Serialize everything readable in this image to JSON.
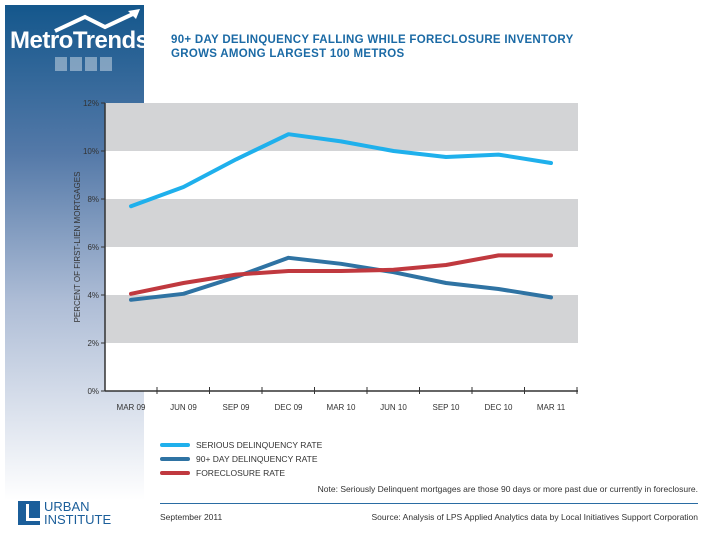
{
  "logo": "MetroTrends",
  "title_lines": [
    "90+ DAY DELINQUENCY FALLING WHILE FORECLOSURE INVENTORY",
    "GROWS AMONG LARGEST 100 METROS"
  ],
  "chart_data": {
    "type": "line",
    "title": "90+ DAY DELINQUENCY FALLING WHILE FORECLOSURE INVENTORY GROWS AMONG LARGEST 100 METROS",
    "xlabel": "",
    "ylabel": "PERCENT OF FIRST-LIEN MORTGAGES",
    "ylim": [
      0,
      12
    ],
    "yticks": [
      "0%",
      "2%",
      "4%",
      "6%",
      "8%",
      "10%",
      "12%"
    ],
    "categories": [
      "MAR 09",
      "JUN 09",
      "SEP 09",
      "DEC 09",
      "MAR 10",
      "JUN 10",
      "SEP 10",
      "DEC 10",
      "MAR 11"
    ],
    "series": [
      {
        "name": "SERIOUS DELINQUENCY RATE",
        "color": "#1fb0ec",
        "values": [
          7.7,
          8.5,
          9.65,
          10.7,
          10.4,
          10.0,
          9.75,
          9.85,
          9.5
        ]
      },
      {
        "name": "90+ DAY DELINQUENCY RATE",
        "color": "#2f73a3",
        "values": [
          3.8,
          4.05,
          4.75,
          5.55,
          5.3,
          4.95,
          4.5,
          4.25,
          3.9
        ]
      },
      {
        "name": "FORECLOSURE RATE",
        "color": "#c0393f",
        "values": [
          4.05,
          4.5,
          4.85,
          5.0,
          5.0,
          5.05,
          5.25,
          5.65,
          5.65
        ]
      }
    ],
    "grid": "alternating gray bands",
    "legend": "bottom-left"
  },
  "note": "Note: Seriously Delinquent mortgages  are those 90 days or more past due or currently in foreclosure.",
  "date": "September 2011",
  "source": "Source: Analysis of LPS Applied Analytics data by Local Initiatives Support Corporation",
  "org": {
    "line1": "URBAN",
    "line2": "INSTITUTE"
  }
}
